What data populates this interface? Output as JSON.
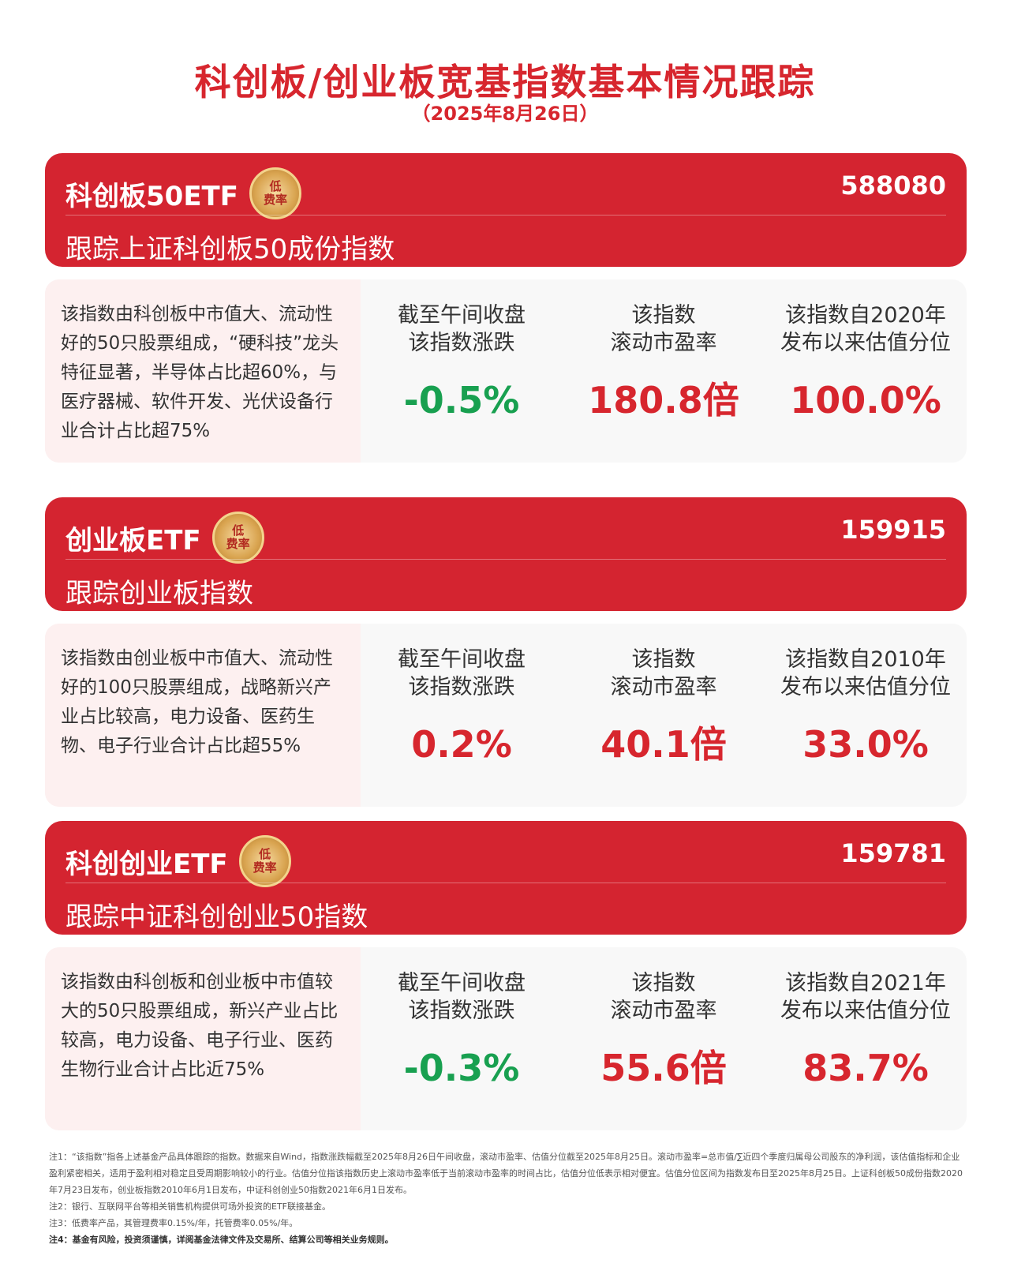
{
  "title": "科创板/创业板宽基指数基本情况跟踪",
  "date": "（2025年8月26日）",
  "badge": {
    "line1": "低",
    "line2": "费率"
  },
  "colors": {
    "primary": "#d42430",
    "down": "#18a050",
    "up": "#d7262e"
  },
  "cards": [
    {
      "name": "科创板50ETF",
      "code": "588080",
      "track": "跟踪上证科创板50成份指数",
      "desc": "该指数由科创板中市值大、流动性好的50只股票组成，“硬科技”龙头特征显著，半导体占比超60%，与医疗器械、软件开发、光伏设备行业合计占比超75%",
      "m1_l1": "截至午间收盘",
      "m1_l2": "该指数涨跌",
      "m1_v": "-0.5%",
      "m2_l1": "该指数",
      "m2_l2": "滚动市盈率",
      "m2_v": "180.8倍",
      "m3_l1": "该指数自2020年",
      "m3_l2": "发布以来估值分位",
      "m3_v": "100.0%"
    },
    {
      "name": "创业板ETF",
      "code": "159915",
      "track": "跟踪创业板指数",
      "desc": "该指数由创业板中市值大、流动性好的100只股票组成，战略新兴产业占比较高，电力设备、医药生物、电子行业合计占比超55%",
      "m1_l1": "截至午间收盘",
      "m1_l2": "该指数涨跌",
      "m1_v": "0.2%",
      "m2_l1": "该指数",
      "m2_l2": "滚动市盈率",
      "m2_v": "40.1倍",
      "m3_l1": "该指数自2010年",
      "m3_l2": "发布以来估值分位",
      "m3_v": "33.0%"
    },
    {
      "name": "科创创业ETF",
      "code": "159781",
      "track": "跟踪中证科创创业50指数",
      "desc": "该指数由科创板和创业板中市值较大的50只股票组成，新兴产业占比较高，电力设备、电子行业、医药生物行业合计占比近75%",
      "m1_l1": "截至午间收盘",
      "m1_l2": "该指数涨跌",
      "m1_v": "-0.3%",
      "m2_l1": "该指数",
      "m2_l2": "滚动市盈率",
      "m2_v": "55.6倍",
      "m3_l1": "该指数自2021年",
      "m3_l2": "发布以来估值分位",
      "m3_v": "83.7%"
    }
  ],
  "notes": [
    "注1：“该指数”指各上述基金产品具体跟踪的指数。数据来自Wind，指数涨跌幅截至2025年8月26日午间收盘，滚动市盈率、估值分位截至2025年8月25日。滚动市盈率=总市值/∑近四个季度归属母公司股东的净利润，该估值指标和企业盈利紧密相关，适用于盈利相对稳定且受周期影响较小的行业。估值分位指该指数历史上滚动市盈率低于当前滚动市盈率的时间占比，估值分位低表示相对便宜。估值分位区间为指数发布日至2025年8月25日。上证科创板50成份指数2020年7月23日发布，创业板指数2010年6月1日发布，中证科创创业50指数2021年6月1日发布。",
    "注2：银行、互联网平台等相关销售机构提供可场外投资的ETF联接基金。",
    "注3：低费率产品，其管理费率0.15%/年，托管费率0.05%/年。",
    "注4：基金有风险，投资须谨慎，详阅基金法律文件及交易所、结算公司等相关业务规则。"
  ]
}
